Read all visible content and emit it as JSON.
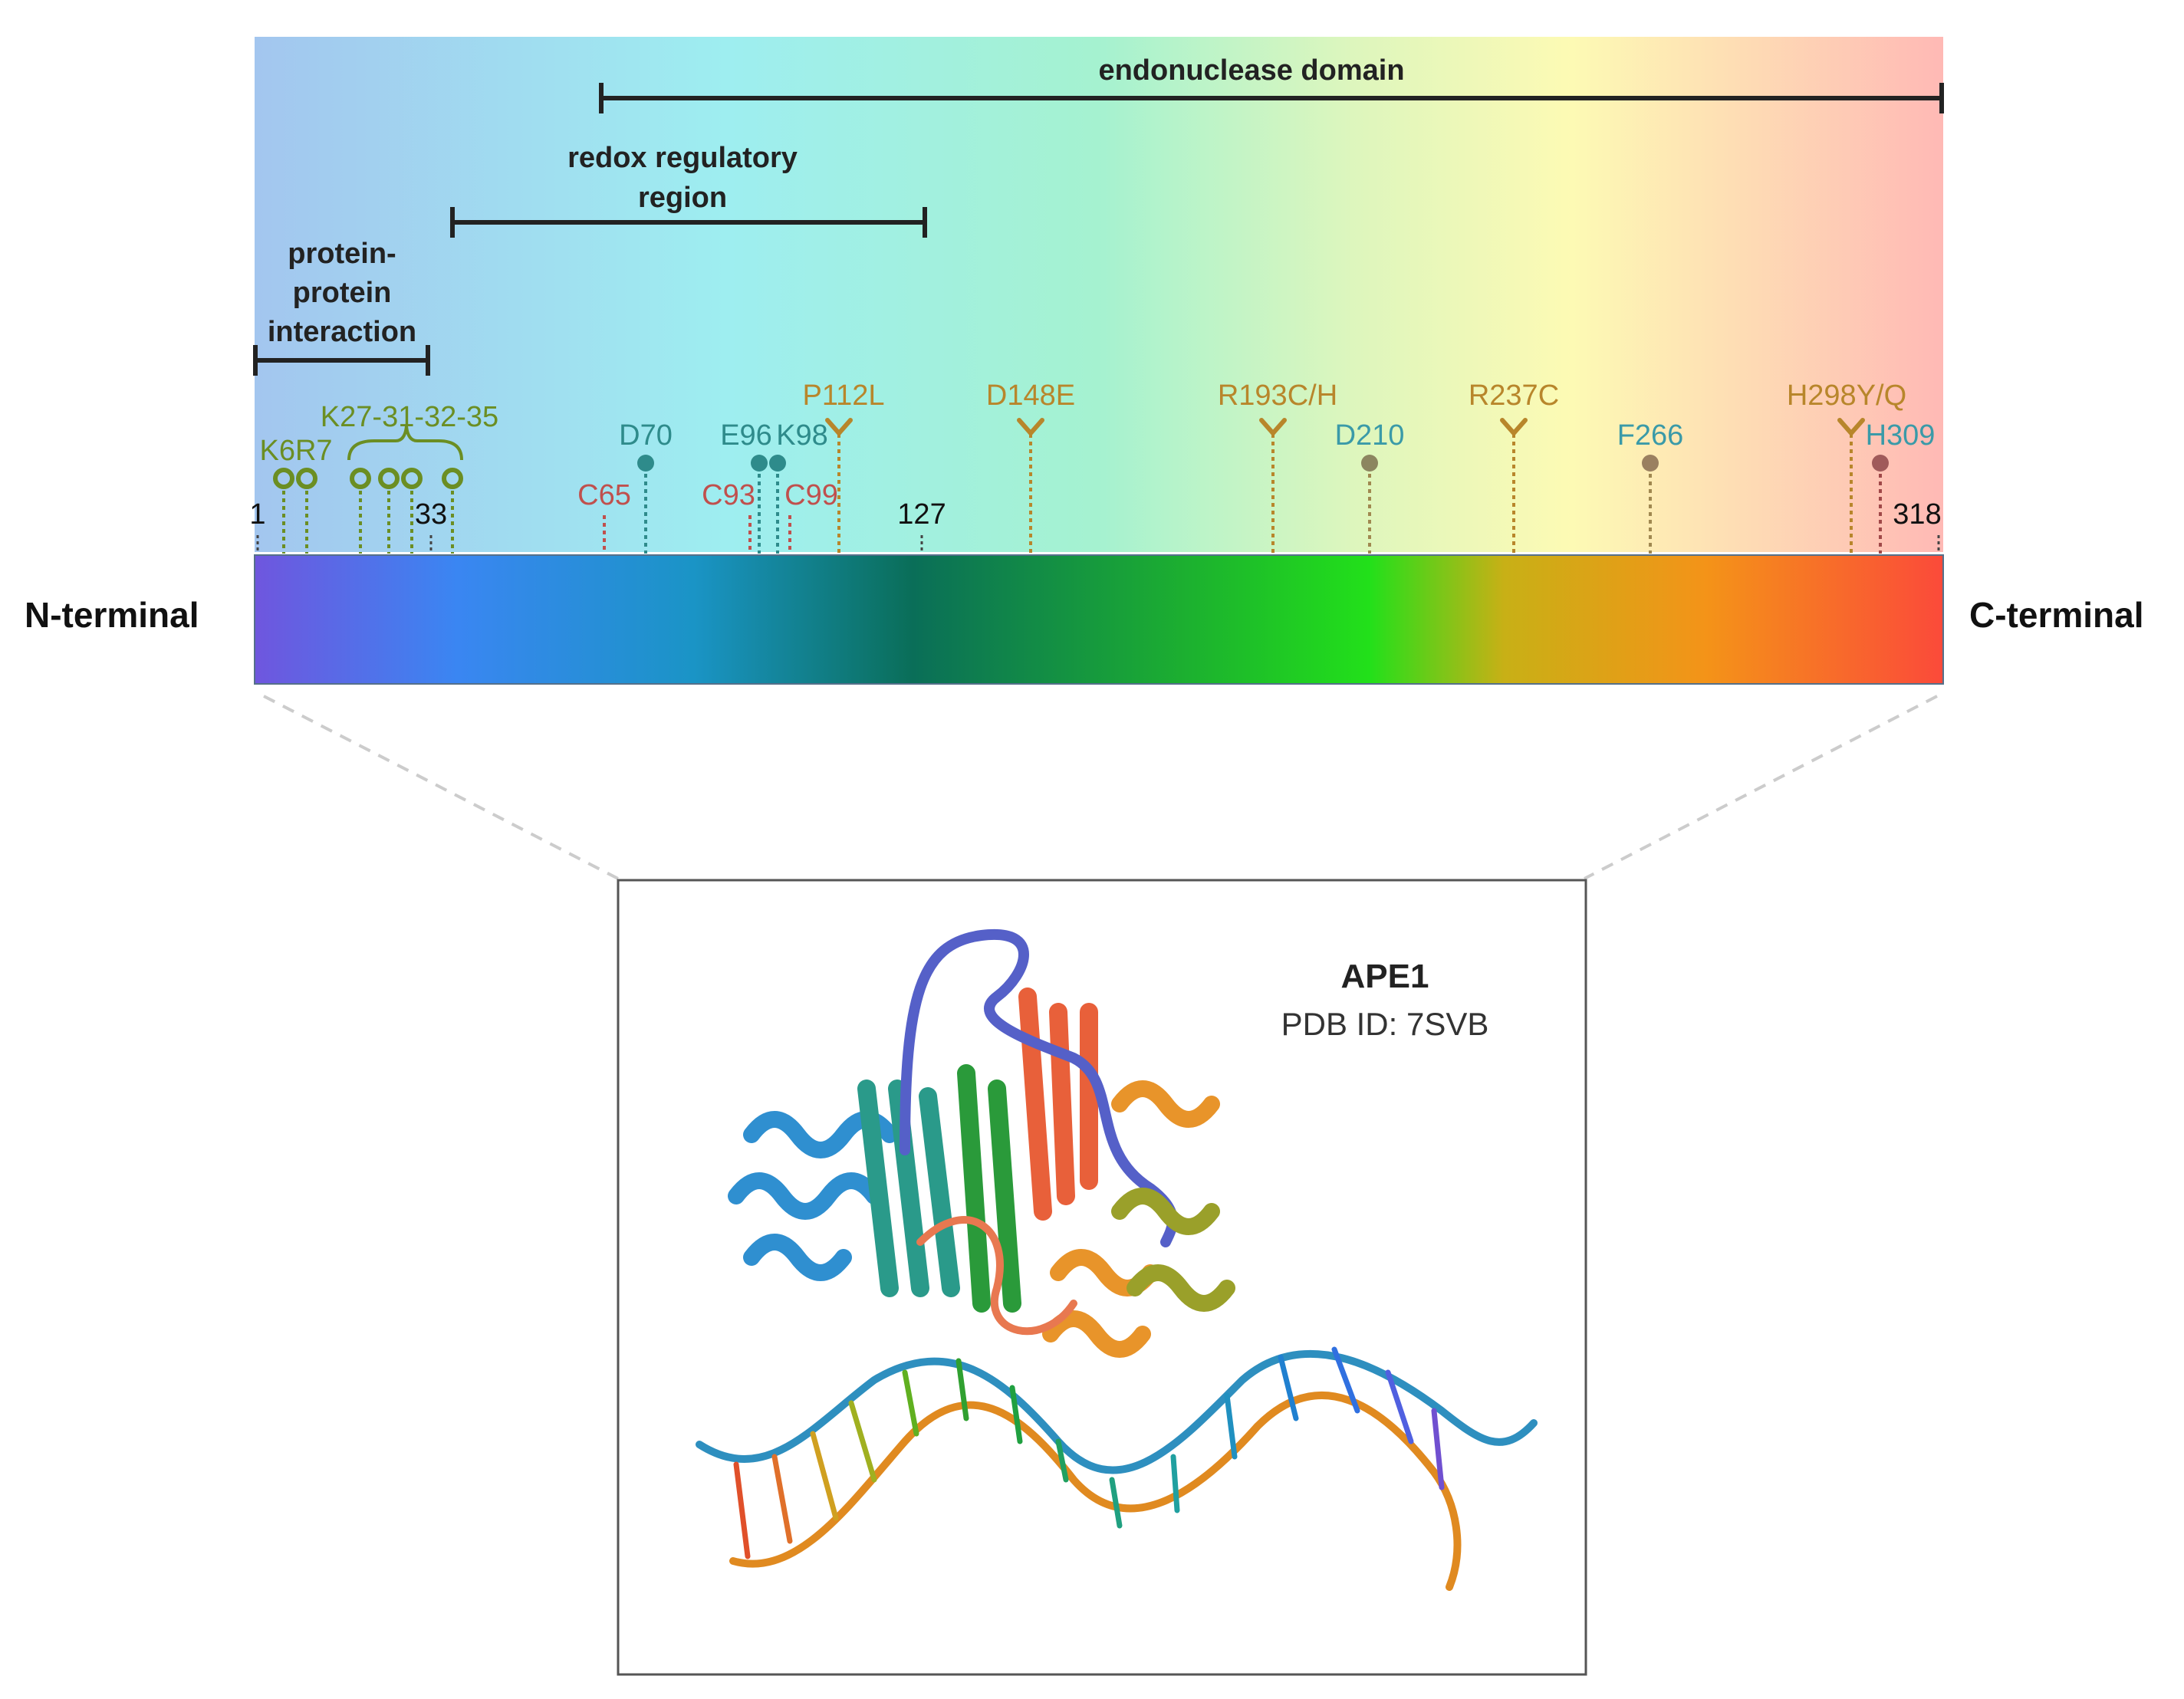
{
  "domains": [
    {
      "id": "ppi",
      "lines": [
        "protein-",
        "protein",
        "interaction"
      ]
    },
    {
      "id": "redox",
      "lines": [
        "redox regulatory",
        "region"
      ]
    },
    {
      "id": "endo",
      "lines": [
        "endonuclease domain"
      ]
    }
  ],
  "terminals": {
    "n": "N-terminal",
    "c": "C-terminal"
  },
  "residue_numbers": [
    "1",
    "33",
    "127",
    "318"
  ],
  "modification_sites": [
    {
      "label": "K6R7",
      "color": "#6b8e23",
      "kind": "acetylation-circle"
    },
    {
      "label": "K27-31-32-35",
      "color": "#6b8e23",
      "kind": "acetylation-circle"
    },
    {
      "label": "C65",
      "color": "#c0504d",
      "kind": "cysteine"
    },
    {
      "label": "D70",
      "color": "#2e8b8b",
      "kind": "dot"
    },
    {
      "label": "C93",
      "color": "#c0504d",
      "kind": "cysteine"
    },
    {
      "label": "E96",
      "color": "#2e8b8b",
      "kind": "dot"
    },
    {
      "label": "K98",
      "color": "#2e8b8b",
      "kind": "dot"
    },
    {
      "label": "C99",
      "color": "#c0504d",
      "kind": "cysteine"
    },
    {
      "label": "P112L",
      "color": "#b8862b",
      "kind": "variant-chevron"
    },
    {
      "label": "D148E",
      "color": "#b8862b",
      "kind": "variant-chevron"
    },
    {
      "label": "R193C/H",
      "color": "#b8862b",
      "kind": "variant-chevron"
    },
    {
      "label": "D210",
      "color": "#3a9aa8",
      "kind": "dot"
    },
    {
      "label": "R237C",
      "color": "#b8862b",
      "kind": "variant-chevron"
    },
    {
      "label": "F266",
      "color": "#3a9aa8",
      "kind": "dot"
    },
    {
      "label": "H298Y/Q",
      "color": "#b8862b",
      "kind": "variant-chevron"
    },
    {
      "label": "H309",
      "color": "#3a9aa8",
      "kind": "dot"
    }
  ],
  "structure_panel": {
    "title": "APE1",
    "pdb": "PDB ID: 7SVB"
  }
}
